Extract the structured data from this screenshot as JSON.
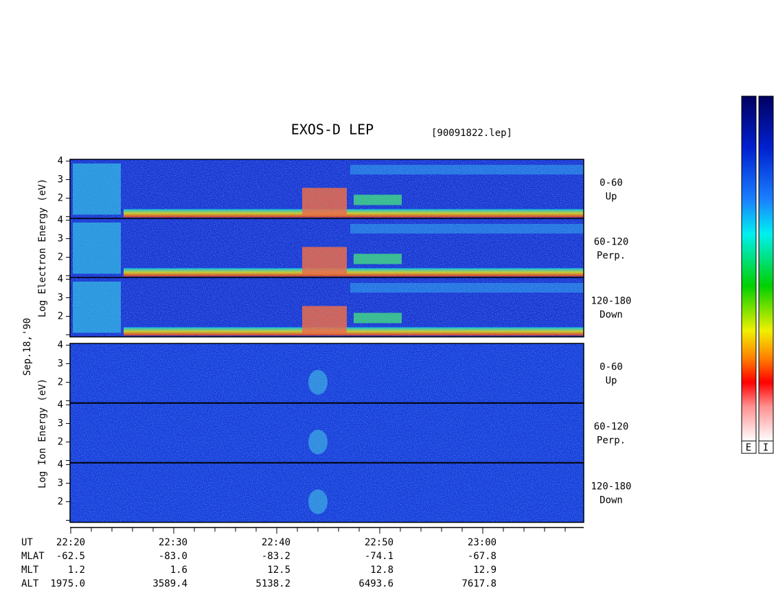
{
  "title": "EXOS-D LEP",
  "file": "[90091822.lep]",
  "date_label": "Sep.18,'90",
  "electron_axis_label": "Log Electron Energy (eV)",
  "ion_axis_label": "Log Ion Energy (eV)",
  "panels": [
    {
      "range": "0-60",
      "direction": "Up",
      "yticks": [
        2,
        3,
        4
      ]
    },
    {
      "range": "60-120",
      "direction": "Perp.",
      "yticks": [
        2,
        3,
        4
      ]
    },
    {
      "range": "120-180",
      "direction": "Down",
      "yticks": [
        2,
        3,
        4
      ]
    },
    {
      "range": "0-60",
      "direction": "Up",
      "yticks": [
        2,
        3,
        4
      ]
    },
    {
      "range": "60-120",
      "direction": "Perp.",
      "yticks": [
        2,
        3,
        4
      ]
    },
    {
      "range": "120-180",
      "direction": "Down",
      "yticks": [
        2,
        3,
        4
      ]
    }
  ],
  "x_rows": [
    {
      "label": "UT",
      "values": [
        "22:20",
        "22:30",
        "22:40",
        "22:50",
        "23:00"
      ]
    },
    {
      "label": "MLAT",
      "values": [
        "-62.5",
        "-83.0",
        "-83.2",
        "-74.1",
        "-67.8"
      ]
    },
    {
      "label": "MLT",
      "values": [
        "1.2",
        "1.6",
        "12.5",
        "12.8",
        "12.9"
      ]
    },
    {
      "label": "ALT",
      "values": [
        "1975.0",
        "3589.4",
        "5138.2",
        "6493.6",
        "7617.8"
      ]
    }
  ],
  "colorbar_labels": [
    "E",
    "I"
  ]
}
